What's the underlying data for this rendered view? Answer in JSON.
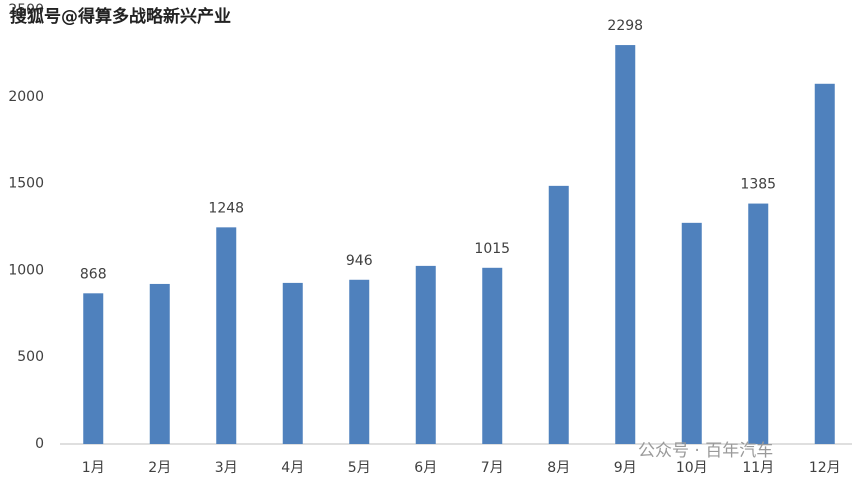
{
  "chart_data": {
    "type": "bar",
    "categories": [
      "1月",
      "2月",
      "3月",
      "4月",
      "5月",
      "6月",
      "7月",
      "8月",
      "9月",
      "10月",
      "11月",
      "12月"
    ],
    "values": [
      868,
      922,
      1248,
      928,
      946,
      1026,
      1015,
      1487,
      2298,
      1274,
      1385,
      2075
    ],
    "value_labels": [
      "868",
      null,
      "1248",
      null,
      "946",
      null,
      "1015",
      null,
      "2298",
      null,
      "1385",
      null
    ],
    "color": "#4f81bd",
    "ylim": [
      0,
      2500
    ],
    "yticks": [
      0,
      500,
      1000,
      1500,
      2000,
      2500
    ],
    "grid": false,
    "annotations": [
      "搜狐号@得算多战略新兴产业",
      "公众号 · 百年汽车"
    ]
  }
}
